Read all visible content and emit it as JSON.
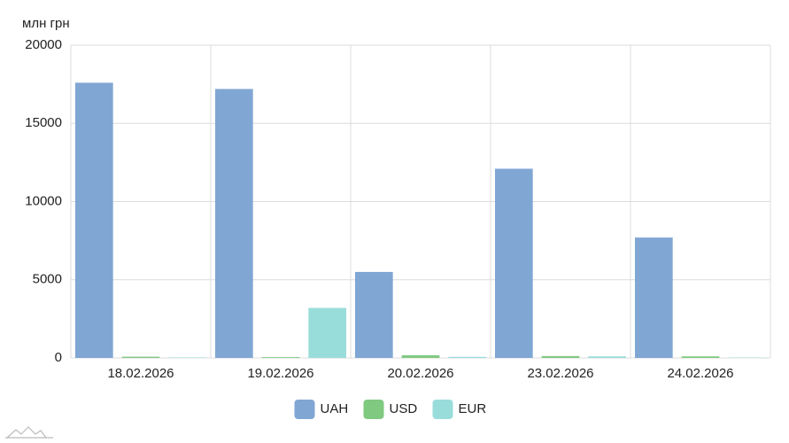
{
  "chart_data": {
    "type": "bar",
    "y_label": "млн грн",
    "categories": [
      "18.02.2026",
      "19.02.2026",
      "20.02.2026",
      "23.02.2026",
      "24.02.2026"
    ],
    "series": [
      {
        "name": "UAH",
        "color": "#80a6d4",
        "values": [
          17600,
          17200,
          5500,
          12100,
          7700
        ]
      },
      {
        "name": "USD",
        "color": "#80c980",
        "values": [
          80,
          50,
          170,
          120,
          100
        ]
      },
      {
        "name": "EUR",
        "color": "#99dddb",
        "values": [
          30,
          3200,
          70,
          100,
          20
        ]
      }
    ],
    "ylim": [
      0,
      20000
    ],
    "yticks": [
      0,
      5000,
      10000,
      15000,
      20000
    ],
    "grid": true
  }
}
